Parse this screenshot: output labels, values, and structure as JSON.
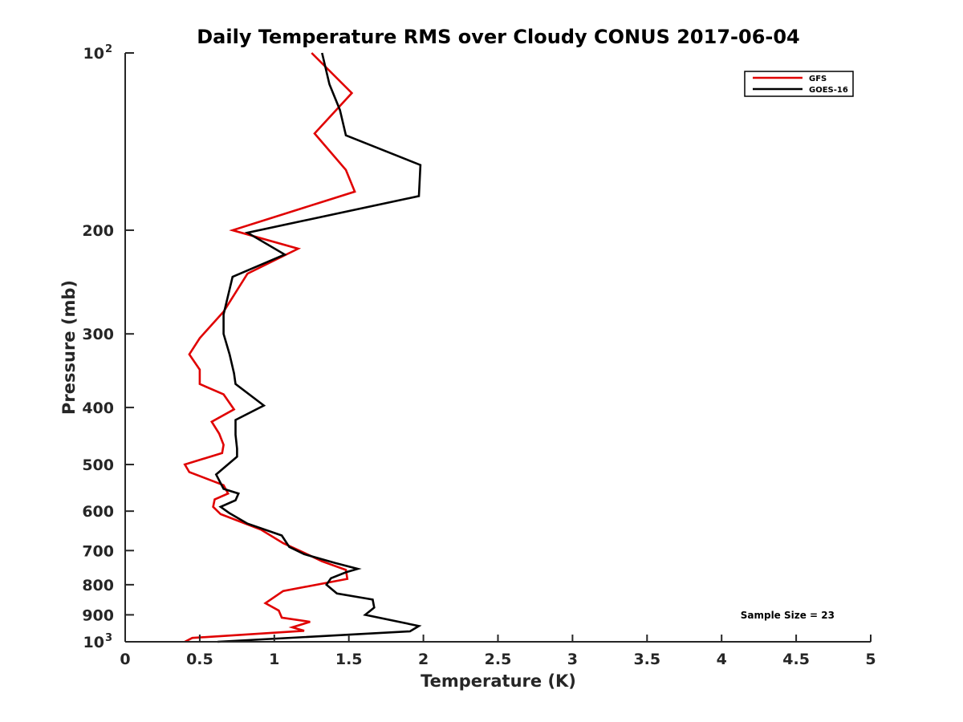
{
  "chart_data": {
    "type": "line",
    "title": "Daily Temperature RMS over Cloudy CONUS 2017-06-04",
    "xlabel": "Temperature (K)",
    "ylabel": "Pressure (mb)",
    "xlim": [
      0,
      5
    ],
    "ylim": [
      100,
      1000
    ],
    "y_scale": "log",
    "y_reversed": true,
    "x_ticks": [
      "0",
      "0.5",
      "1",
      "1.5",
      "2",
      "2.5",
      "3",
      "3.5",
      "4",
      "4.5",
      "5"
    ],
    "y_ticks": [
      {
        "value": 100,
        "base": "10",
        "exp": "2"
      },
      {
        "value": 200,
        "label": "200"
      },
      {
        "value": 300,
        "label": "300"
      },
      {
        "value": 400,
        "label": "400"
      },
      {
        "value": 500,
        "label": "500"
      },
      {
        "value": 600,
        "label": "600"
      },
      {
        "value": 700,
        "label": "700"
      },
      {
        "value": 800,
        "label": "800"
      },
      {
        "value": 900,
        "label": "900"
      },
      {
        "value": 1000,
        "base": "10",
        "exp": "3"
      }
    ],
    "grid": false,
    "legend_position": "top-right",
    "annotation": "Sample Size = 23",
    "series": [
      {
        "name": "GFS",
        "color": "#e00000",
        "points": [
          [
            1.25,
            100
          ],
          [
            1.52,
            117
          ],
          [
            1.27,
            137
          ],
          [
            1.48,
            158
          ],
          [
            1.54,
            172
          ],
          [
            0.72,
            200
          ],
          [
            1.16,
            215
          ],
          [
            0.82,
            237
          ],
          [
            0.66,
            275
          ],
          [
            0.5,
            305
          ],
          [
            0.43,
            325
          ],
          [
            0.5,
            345
          ],
          [
            0.5,
            365
          ],
          [
            0.66,
            380
          ],
          [
            0.73,
            403
          ],
          [
            0.58,
            423
          ],
          [
            0.63,
            443
          ],
          [
            0.66,
            463
          ],
          [
            0.65,
            478
          ],
          [
            0.4,
            500
          ],
          [
            0.43,
            515
          ],
          [
            0.66,
            542
          ],
          [
            0.69,
            560
          ],
          [
            0.6,
            573
          ],
          [
            0.59,
            590
          ],
          [
            0.64,
            607
          ],
          [
            0.91,
            645
          ],
          [
            1.06,
            680
          ],
          [
            1.22,
            710
          ],
          [
            1.32,
            730
          ],
          [
            1.48,
            755
          ],
          [
            1.49,
            782
          ],
          [
            1.06,
            820
          ],
          [
            0.94,
            860
          ],
          [
            1.03,
            885
          ],
          [
            1.05,
            910
          ],
          [
            1.24,
            925
          ],
          [
            1.12,
            945
          ],
          [
            1.2,
            958
          ],
          [
            0.45,
            985
          ],
          [
            0.4,
            1000
          ]
        ]
      },
      {
        "name": "GOES-16",
        "color": "#000000",
        "points": [
          [
            1.32,
            100
          ],
          [
            1.37,
            113
          ],
          [
            1.44,
            125
          ],
          [
            1.48,
            138
          ],
          [
            1.98,
            155
          ],
          [
            1.97,
            175
          ],
          [
            0.82,
            202
          ],
          [
            1.07,
            220
          ],
          [
            0.72,
            240
          ],
          [
            0.66,
            278
          ],
          [
            0.66,
            300
          ],
          [
            0.7,
            325
          ],
          [
            0.73,
            350
          ],
          [
            0.74,
            365
          ],
          [
            0.93,
            397
          ],
          [
            0.74,
            420
          ],
          [
            0.74,
            445
          ],
          [
            0.75,
            470
          ],
          [
            0.75,
            485
          ],
          [
            0.61,
            520
          ],
          [
            0.66,
            550
          ],
          [
            0.76,
            560
          ],
          [
            0.74,
            575
          ],
          [
            0.64,
            590
          ],
          [
            0.7,
            605
          ],
          [
            0.82,
            630
          ],
          [
            1.05,
            660
          ],
          [
            1.1,
            690
          ],
          [
            1.2,
            710
          ],
          [
            1.41,
            735
          ],
          [
            1.56,
            752
          ],
          [
            1.48,
            762
          ],
          [
            1.38,
            780
          ],
          [
            1.35,
            800
          ],
          [
            1.42,
            828
          ],
          [
            1.66,
            848
          ],
          [
            1.67,
            875
          ],
          [
            1.61,
            900
          ],
          [
            1.97,
            940
          ],
          [
            1.91,
            960
          ],
          [
            0.62,
            1000
          ]
        ]
      }
    ]
  }
}
